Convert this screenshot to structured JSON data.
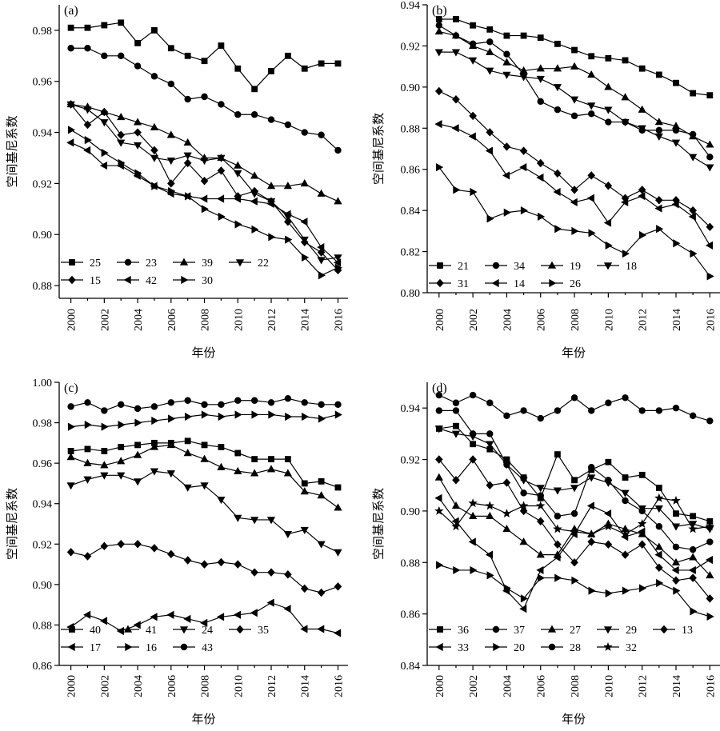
{
  "chart_data": [
    {
      "type": "line",
      "panel_label": "(a)",
      "xlabel": "年份",
      "ylabel": "空间基尼系数",
      "x": [
        2000,
        2001,
        2002,
        2003,
        2004,
        2005,
        2006,
        2007,
        2008,
        2009,
        2010,
        2011,
        2012,
        2013,
        2014,
        2015,
        2016
      ],
      "xlim": [
        1999.3,
        2016.6
      ],
      "xticks": [
        2000,
        2002,
        2004,
        2006,
        2008,
        2010,
        2012,
        2014,
        2016
      ],
      "ylim": [
        0.875,
        0.99
      ],
      "yticks": [
        0.88,
        0.9,
        0.92,
        0.94,
        0.96,
        0.98
      ],
      "legend_position": "bottom-left",
      "legend_columns": 4,
      "series": [
        {
          "name": "25",
          "marker": "square",
          "values": [
            0.981,
            0.981,
            0.982,
            0.983,
            0.975,
            0.98,
            0.973,
            0.97,
            0.968,
            0.974,
            0.965,
            0.957,
            0.964,
            0.97,
            0.965,
            0.967,
            0.967
          ]
        },
        {
          "name": "23",
          "marker": "circle",
          "values": [
            0.973,
            0.973,
            0.97,
            0.97,
            0.966,
            0.962,
            0.959,
            0.953,
            0.954,
            0.951,
            0.947,
            0.947,
            0.945,
            0.943,
            0.94,
            0.939,
            0.933
          ]
        },
        {
          "name": "39",
          "marker": "triangle-up",
          "values": [
            0.951,
            0.95,
            0.948,
            0.946,
            0.944,
            0.942,
            0.939,
            0.936,
            0.93,
            0.93,
            0.927,
            0.923,
            0.919,
            0.919,
            0.92,
            0.916,
            0.913
          ]
        },
        {
          "name": "22",
          "marker": "triangle-down",
          "values": [
            0.951,
            0.949,
            0.944,
            0.936,
            0.935,
            0.93,
            0.929,
            0.931,
            0.929,
            0.93,
            0.924,
            0.916,
            0.913,
            0.907,
            0.898,
            0.89,
            0.891
          ]
        },
        {
          "name": "15",
          "marker": "diamond",
          "values": [
            0.951,
            0.943,
            0.948,
            0.939,
            0.94,
            0.933,
            0.92,
            0.928,
            0.921,
            0.925,
            0.915,
            0.917,
            0.913,
            0.905,
            0.897,
            0.893,
            0.886
          ]
        },
        {
          "name": "42",
          "marker": "triangle-left",
          "values": [
            0.936,
            0.933,
            0.927,
            0.927,
            0.923,
            0.919,
            0.916,
            0.915,
            0.914,
            0.914,
            0.914,
            0.913,
            0.912,
            0.908,
            0.905,
            0.895,
            0.889
          ]
        },
        {
          "name": "30",
          "marker": "triangle-right",
          "values": [
            0.941,
            0.937,
            0.932,
            0.928,
            0.924,
            0.919,
            0.917,
            0.915,
            0.91,
            0.907,
            0.904,
            0.902,
            0.899,
            0.898,
            0.891,
            0.884,
            0.887
          ]
        }
      ]
    },
    {
      "type": "line",
      "panel_label": "(b)",
      "xlabel": "年份",
      "ylabel": "空间基尼系数",
      "x": [
        2000,
        2001,
        2002,
        2003,
        2004,
        2005,
        2006,
        2007,
        2008,
        2009,
        2010,
        2011,
        2012,
        2013,
        2014,
        2015,
        2016
      ],
      "xlim": [
        1999.3,
        2016.6
      ],
      "xticks": [
        2000,
        2002,
        2004,
        2006,
        2008,
        2010,
        2012,
        2014,
        2016
      ],
      "ylim": [
        0.8,
        0.94
      ],
      "yticks": [
        0.8,
        0.82,
        0.84,
        0.86,
        0.88,
        0.9,
        0.92,
        0.94
      ],
      "legend_position": "bottom-left",
      "legend_columns": 4,
      "series": [
        {
          "name": "21",
          "marker": "square",
          "values": [
            0.933,
            0.933,
            0.93,
            0.928,
            0.925,
            0.925,
            0.924,
            0.921,
            0.918,
            0.915,
            0.914,
            0.913,
            0.909,
            0.906,
            0.902,
            0.897,
            0.896
          ]
        },
        {
          "name": "34",
          "marker": "circle",
          "values": [
            0.93,
            0.925,
            0.921,
            0.922,
            0.916,
            0.906,
            0.893,
            0.889,
            0.886,
            0.887,
            0.883,
            0.883,
            0.879,
            0.879,
            0.879,
            0.877,
            0.866
          ]
        },
        {
          "name": "19",
          "marker": "triangle-up",
          "values": [
            0.927,
            0.925,
            0.92,
            0.917,
            0.912,
            0.908,
            0.909,
            0.909,
            0.91,
            0.906,
            0.9,
            0.895,
            0.889,
            0.883,
            0.881,
            0.876,
            0.872
          ]
        },
        {
          "name": "18",
          "marker": "triangle-down",
          "values": [
            0.917,
            0.917,
            0.913,
            0.908,
            0.906,
            0.905,
            0.904,
            0.9,
            0.894,
            0.891,
            0.889,
            0.883,
            0.88,
            0.876,
            0.873,
            0.866,
            0.861
          ]
        },
        {
          "name": "31",
          "marker": "diamond",
          "values": [
            0.898,
            0.894,
            0.886,
            0.878,
            0.871,
            0.869,
            0.863,
            0.858,
            0.85,
            0.857,
            0.852,
            0.846,
            0.85,
            0.845,
            0.845,
            0.84,
            0.832
          ]
        },
        {
          "name": "14",
          "marker": "triangle-left",
          "values": [
            0.882,
            0.88,
            0.876,
            0.869,
            0.857,
            0.861,
            0.856,
            0.849,
            0.844,
            0.846,
            0.834,
            0.844,
            0.847,
            0.841,
            0.843,
            0.837,
            0.823
          ]
        },
        {
          "name": "26",
          "marker": "triangle-right",
          "values": [
            0.861,
            0.85,
            0.849,
            0.836,
            0.839,
            0.84,
            0.837,
            0.831,
            0.83,
            0.829,
            0.823,
            0.819,
            0.828,
            0.831,
            0.824,
            0.819,
            0.808
          ]
        }
      ]
    },
    {
      "type": "line",
      "panel_label": "(c)",
      "xlabel": "年份",
      "ylabel": "空间基尼系数",
      "x": [
        2000,
        2001,
        2002,
        2003,
        2004,
        2005,
        2006,
        2007,
        2008,
        2009,
        2010,
        2011,
        2012,
        2013,
        2014,
        2015,
        2016
      ],
      "xlim": [
        1999.3,
        2016.6
      ],
      "xticks": [
        2000,
        2002,
        2004,
        2006,
        2008,
        2010,
        2012,
        2014,
        2016
      ],
      "ylim": [
        0.86,
        1.0
      ],
      "yticks": [
        0.86,
        0.88,
        0.9,
        0.92,
        0.94,
        0.96,
        0.98,
        1.0
      ],
      "legend_position": "bottom-left",
      "legend_columns": 4,
      "series": [
        {
          "name": "40",
          "marker": "square",
          "values": [
            0.966,
            0.967,
            0.966,
            0.968,
            0.969,
            0.97,
            0.97,
            0.971,
            0.969,
            0.968,
            0.965,
            0.962,
            0.962,
            0.962,
            0.95,
            0.951,
            0.948
          ]
        },
        {
          "name": "41",
          "marker": "triangle-up",
          "values": [
            0.963,
            0.96,
            0.959,
            0.961,
            0.964,
            0.968,
            0.969,
            0.965,
            0.962,
            0.958,
            0.956,
            0.955,
            0.957,
            0.955,
            0.946,
            0.944,
            0.938
          ]
        },
        {
          "name": "24",
          "marker": "triangle-down",
          "values": [
            0.949,
            0.952,
            0.954,
            0.954,
            0.951,
            0.956,
            0.955,
            0.948,
            0.949,
            0.942,
            0.933,
            0.932,
            0.932,
            0.925,
            0.927,
            0.92,
            0.916
          ]
        },
        {
          "name": "35",
          "marker": "diamond",
          "values": [
            0.916,
            0.914,
            0.919,
            0.92,
            0.92,
            0.918,
            0.915,
            0.912,
            0.91,
            0.911,
            0.91,
            0.906,
            0.906,
            0.905,
            0.898,
            0.896,
            0.899
          ]
        },
        {
          "name": "17",
          "marker": "triangle-left",
          "values": [
            0.879,
            0.885,
            0.882,
            0.877,
            0.88,
            0.884,
            0.885,
            0.883,
            0.881,
            0.884,
            0.885,
            0.886,
            0.891,
            0.888,
            0.878,
            0.878,
            0.876
          ]
        },
        {
          "name": "16",
          "marker": "triangle-right",
          "values": [
            0.978,
            0.979,
            0.978,
            0.979,
            0.98,
            0.981,
            0.982,
            0.983,
            0.984,
            0.983,
            0.984,
            0.984,
            0.984,
            0.983,
            0.983,
            0.982,
            0.984
          ]
        },
        {
          "name": "43",
          "marker": "circle",
          "values": [
            0.988,
            0.99,
            0.986,
            0.989,
            0.987,
            0.988,
            0.99,
            0.991,
            0.989,
            0.989,
            0.991,
            0.991,
            0.99,
            0.992,
            0.99,
            0.989,
            0.989
          ]
        }
      ]
    },
    {
      "type": "line",
      "panel_label": "(d)",
      "xlabel": "年份",
      "ylabel": "空间基尼系数",
      "x": [
        2000,
        2001,
        2002,
        2003,
        2004,
        2005,
        2006,
        2007,
        2008,
        2009,
        2010,
        2011,
        2012,
        2013,
        2014,
        2015,
        2016
      ],
      "xlim": [
        1999.3,
        2016.6
      ],
      "xticks": [
        2000,
        2002,
        2004,
        2006,
        2008,
        2010,
        2012,
        2014,
        2016
      ],
      "ylim": [
        0.84,
        0.95
      ],
      "yticks": [
        0.84,
        0.86,
        0.88,
        0.9,
        0.92,
        0.94
      ],
      "legend_position": "bottom-left",
      "legend_columns": 5,
      "series": [
        {
          "name": "36",
          "marker": "square",
          "values": [
            0.932,
            0.933,
            0.926,
            0.924,
            0.92,
            0.913,
            0.905,
            0.922,
            0.912,
            0.916,
            0.919,
            0.913,
            0.914,
            0.909,
            0.899,
            0.898,
            0.896
          ]
        },
        {
          "name": "37",
          "marker": "circle",
          "values": [
            0.939,
            0.939,
            0.93,
            0.93,
            0.918,
            0.907,
            0.906,
            0.898,
            0.899,
            0.917,
            0.912,
            0.904,
            0.9,
            0.894,
            0.886,
            0.885,
            0.888
          ]
        },
        {
          "name": "27",
          "marker": "triangle-up",
          "values": [
            0.913,
            0.902,
            0.898,
            0.898,
            0.893,
            0.888,
            0.883,
            0.883,
            0.893,
            0.891,
            0.895,
            0.893,
            0.891,
            0.886,
            0.88,
            0.882,
            0.875
          ]
        },
        {
          "name": "29",
          "marker": "triangle-down",
          "values": [
            0.932,
            0.93,
            0.929,
            0.926,
            0.918,
            0.912,
            0.909,
            0.908,
            0.909,
            0.913,
            0.911,
            0.907,
            0.901,
            0.901,
            0.894,
            0.895,
            0.893
          ]
        },
        {
          "name": "13",
          "marker": "diamond",
          "values": [
            0.92,
            0.912,
            0.92,
            0.91,
            0.911,
            0.9,
            0.896,
            0.887,
            0.88,
            0.888,
            0.887,
            0.883,
            0.887,
            0.878,
            0.873,
            0.874,
            0.866
          ]
        },
        {
          "name": "33",
          "marker": "triangle-left",
          "values": [
            0.905,
            0.896,
            0.888,
            0.883,
            0.869,
            0.862,
            0.877,
            0.882,
            0.891,
            0.902,
            0.899,
            0.89,
            0.892,
            0.883,
            0.877,
            0.877,
            0.881
          ]
        },
        {
          "name": "20",
          "marker": "triangle-right",
          "values": [
            0.879,
            0.877,
            0.877,
            0.875,
            0.87,
            0.866,
            0.874,
            0.874,
            0.873,
            0.869,
            0.868,
            0.869,
            0.87,
            0.872,
            0.869,
            0.861,
            0.859
          ]
        },
        {
          "name": "28",
          "marker": "circle",
          "values": [
            0.945,
            0.942,
            0.945,
            0.942,
            0.937,
            0.939,
            0.936,
            0.939,
            0.944,
            0.939,
            0.942,
            0.944,
            0.939,
            0.939,
            0.94,
            0.937,
            0.935
          ]
        },
        {
          "name": "32",
          "marker": "star",
          "values": [
            0.9,
            0.894,
            0.903,
            0.902,
            0.899,
            0.902,
            0.902,
            0.893,
            0.892,
            0.891,
            0.894,
            0.891,
            0.895,
            0.905,
            0.904,
            0.893,
            0.894
          ]
        }
      ]
    }
  ]
}
